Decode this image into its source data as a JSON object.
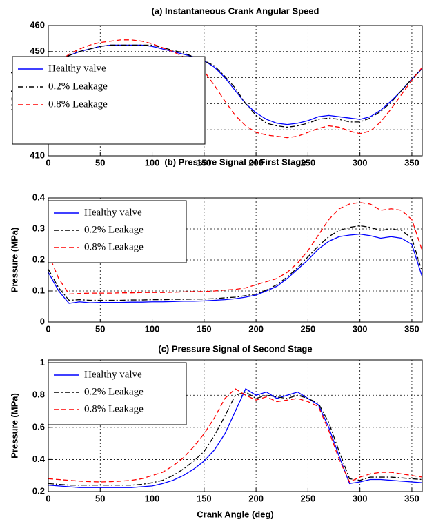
{
  "chart_data": [
    {
      "type": "line",
      "title": "(a) Instantaneous Crank Angular Speed",
      "ylabel": "IAS (rpm)",
      "x": [
        0,
        10,
        20,
        30,
        40,
        50,
        60,
        70,
        80,
        90,
        100,
        110,
        120,
        130,
        140,
        150,
        160,
        170,
        180,
        190,
        200,
        210,
        220,
        230,
        240,
        250,
        260,
        270,
        280,
        290,
        300,
        310,
        320,
        330,
        340,
        350,
        360
      ],
      "xlim": [
        0,
        360
      ],
      "xticks": [
        0,
        50,
        100,
        150,
        200,
        250,
        300,
        350
      ],
      "ylim": [
        410,
        460
      ],
      "yticks": [
        410,
        420,
        430,
        440,
        450,
        460
      ],
      "grid": true,
      "legend": "center left",
      "series": [
        {
          "name": "Healthy valve",
          "color": "#0000ff",
          "style": "solid",
          "values": [
            444,
            446.5,
            448.5,
            450,
            451,
            452,
            452.5,
            452.5,
            452.5,
            452.5,
            452,
            451,
            450,
            449,
            448,
            446.5,
            444,
            440,
            435,
            430,
            426.5,
            424,
            422.5,
            422,
            422.5,
            423.5,
            425,
            425.5,
            425,
            424.5,
            424,
            425,
            427.5,
            431,
            435,
            439.5,
            443.5
          ]
        },
        {
          "name": "0.2% Leakage",
          "color": "#000000",
          "style": "dashdot",
          "values": [
            444,
            446.5,
            448.5,
            450,
            451,
            452,
            452.5,
            452.5,
            452.5,
            452.5,
            452.5,
            451.5,
            450.5,
            449.5,
            448,
            446.5,
            444.5,
            440.5,
            436,
            430,
            425.5,
            422.5,
            421.5,
            421,
            421.5,
            422.5,
            424,
            424.5,
            424,
            423,
            423,
            424.5,
            427,
            430.5,
            435,
            439.5,
            443.5
          ]
        },
        {
          "name": "0.8% Leakage",
          "color": "#ff0000",
          "style": "dashed",
          "values": [
            443,
            446,
            449,
            451,
            452.5,
            453.5,
            454,
            454.5,
            454.5,
            454,
            453,
            451.5,
            450,
            448,
            446,
            442.5,
            437,
            431,
            425.5,
            421.5,
            419,
            418,
            417.5,
            417,
            417.5,
            419,
            420.5,
            421.5,
            421,
            419.5,
            418.5,
            419.5,
            423,
            428,
            433.5,
            439,
            444
          ]
        }
      ]
    },
    {
      "type": "line",
      "title": "(b) Pressure Signal of First Stage",
      "ylabel": "Pressure (MPa)",
      "x": [
        0,
        10,
        20,
        30,
        40,
        50,
        60,
        70,
        80,
        90,
        100,
        110,
        120,
        130,
        140,
        150,
        160,
        170,
        180,
        190,
        200,
        210,
        220,
        230,
        240,
        250,
        260,
        270,
        280,
        290,
        300,
        310,
        320,
        330,
        340,
        350,
        360
      ],
      "xlim": [
        0,
        360
      ],
      "xticks": [
        0,
        50,
        100,
        150,
        200,
        250,
        300,
        350
      ],
      "ylim": [
        0,
        0.4
      ],
      "yticks": [
        0,
        0.1,
        0.2,
        0.3,
        0.4
      ],
      "grid": true,
      "legend": "upper left",
      "series": [
        {
          "name": "Healthy valve",
          "color": "#0000ff",
          "style": "solid",
          "values": [
            0.16,
            0.1,
            0.06,
            0.065,
            0.062,
            0.063,
            0.063,
            0.063,
            0.064,
            0.064,
            0.065,
            0.065,
            0.066,
            0.067,
            0.067,
            0.068,
            0.07,
            0.072,
            0.075,
            0.08,
            0.087,
            0.1,
            0.115,
            0.14,
            0.17,
            0.2,
            0.235,
            0.26,
            0.275,
            0.28,
            0.283,
            0.278,
            0.27,
            0.275,
            0.27,
            0.25,
            0.145
          ]
        },
        {
          "name": "0.2% Leakage",
          "color": "#000000",
          "style": "dashdot",
          "values": [
            0.17,
            0.11,
            0.07,
            0.072,
            0.07,
            0.07,
            0.07,
            0.07,
            0.071,
            0.071,
            0.072,
            0.072,
            0.073,
            0.073,
            0.074,
            0.074,
            0.075,
            0.078,
            0.08,
            0.085,
            0.09,
            0.103,
            0.12,
            0.145,
            0.175,
            0.21,
            0.245,
            0.275,
            0.295,
            0.305,
            0.31,
            0.305,
            0.295,
            0.3,
            0.295,
            0.27,
            0.16
          ]
        },
        {
          "name": "0.8% Leakage",
          "color": "#ff0000",
          "style": "dashed",
          "values": [
            0.22,
            0.14,
            0.09,
            0.092,
            0.093,
            0.093,
            0.093,
            0.094,
            0.094,
            0.095,
            0.095,
            0.095,
            0.096,
            0.097,
            0.098,
            0.098,
            0.1,
            0.103,
            0.105,
            0.11,
            0.12,
            0.13,
            0.14,
            0.16,
            0.19,
            0.23,
            0.28,
            0.33,
            0.365,
            0.38,
            0.385,
            0.38,
            0.36,
            0.365,
            0.36,
            0.33,
            0.23
          ]
        }
      ]
    },
    {
      "type": "line",
      "title": "(c) Pressure Signal of Second Stage",
      "ylabel": "Pressure (MPa)",
      "xlabel": "Crank Angle (deg)",
      "x": [
        0,
        10,
        20,
        30,
        40,
        50,
        60,
        70,
        80,
        90,
        100,
        110,
        120,
        130,
        140,
        150,
        160,
        170,
        180,
        190,
        200,
        210,
        220,
        230,
        240,
        250,
        260,
        270,
        280,
        290,
        300,
        310,
        320,
        330,
        340,
        350,
        360
      ],
      "xlim": [
        0,
        360
      ],
      "xticks": [
        0,
        50,
        100,
        150,
        200,
        250,
        300,
        350
      ],
      "ylim": [
        0.2,
        1.02
      ],
      "yticks": [
        0.2,
        0.4,
        0.6,
        0.8,
        1
      ],
      "grid": true,
      "legend": "upper left",
      "series": [
        {
          "name": "Healthy valve",
          "color": "#0000ff",
          "style": "solid",
          "values": [
            0.24,
            0.235,
            0.23,
            0.225,
            0.225,
            0.225,
            0.225,
            0.225,
            0.225,
            0.23,
            0.235,
            0.25,
            0.27,
            0.3,
            0.34,
            0.39,
            0.46,
            0.56,
            0.7,
            0.84,
            0.8,
            0.82,
            0.78,
            0.8,
            0.82,
            0.78,
            0.74,
            0.6,
            0.42,
            0.25,
            0.26,
            0.275,
            0.275,
            0.27,
            0.265,
            0.26,
            0.255
          ]
        },
        {
          "name": "0.2% Leakage",
          "color": "#000000",
          "style": "dashdot",
          "values": [
            0.25,
            0.245,
            0.24,
            0.24,
            0.24,
            0.24,
            0.24,
            0.24,
            0.24,
            0.245,
            0.255,
            0.27,
            0.3,
            0.34,
            0.39,
            0.45,
            0.55,
            0.67,
            0.8,
            0.82,
            0.78,
            0.8,
            0.79,
            0.78,
            0.8,
            0.78,
            0.75,
            0.63,
            0.45,
            0.28,
            0.27,
            0.29,
            0.29,
            0.29,
            0.285,
            0.28,
            0.275
          ]
        },
        {
          "name": "0.8% Leakage",
          "color": "#ff0000",
          "style": "dashed",
          "values": [
            0.28,
            0.275,
            0.27,
            0.265,
            0.262,
            0.26,
            0.262,
            0.265,
            0.27,
            0.28,
            0.3,
            0.32,
            0.36,
            0.41,
            0.48,
            0.56,
            0.66,
            0.78,
            0.84,
            0.8,
            0.77,
            0.79,
            0.76,
            0.77,
            0.78,
            0.76,
            0.73,
            0.58,
            0.4,
            0.26,
            0.29,
            0.31,
            0.32,
            0.32,
            0.31,
            0.3,
            0.29
          ]
        }
      ]
    }
  ]
}
